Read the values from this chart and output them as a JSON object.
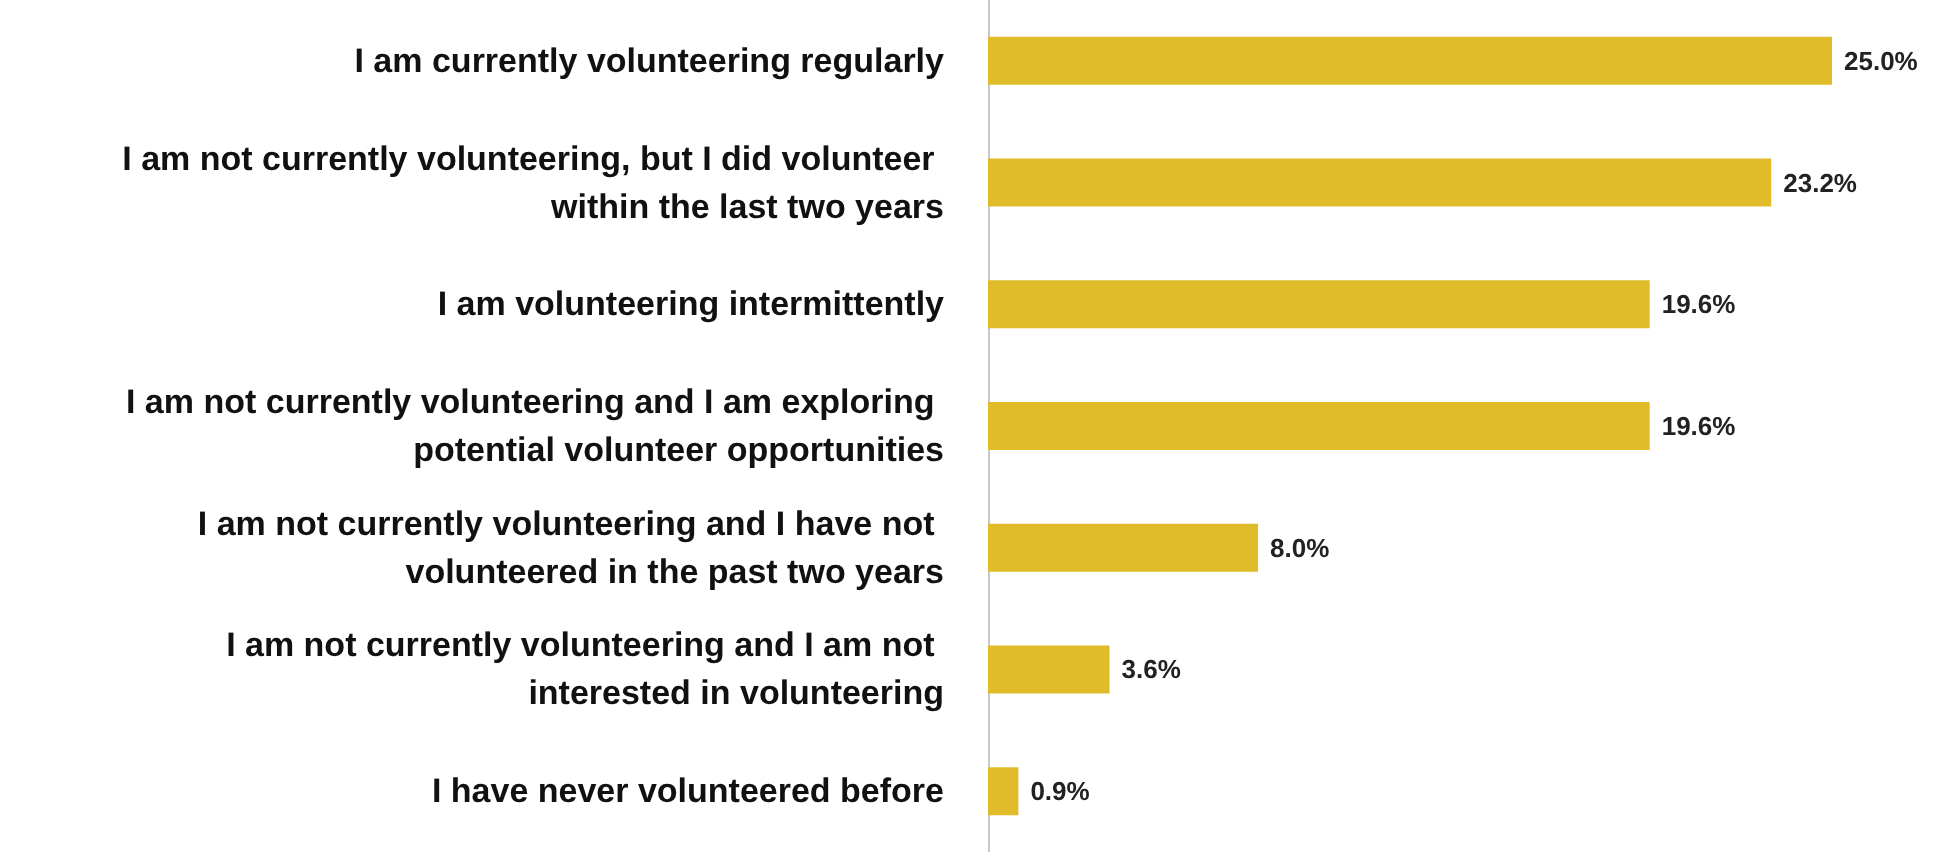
{
  "chart_data": {
    "type": "bar",
    "orientation": "horizontal",
    "categories": [
      "I am currently volunteering regularly",
      "I am not currently volunteering, but I did volunteer within the last two years",
      "I am volunteering intermittently",
      "I am not currently volunteering and I am exploring potential volunteer opportunities",
      "I am not currently volunteering and I have not volunteered in the past two years",
      "I am not currently volunteering and I am not interested in volunteering",
      "I have never volunteered before"
    ],
    "values": [
      25.0,
      23.2,
      19.6,
      19.6,
      8.0,
      3.6,
      0.9
    ],
    "value_labels": [
      "25.0%",
      "23.2%",
      "19.6%",
      "19.6%",
      "8.0%",
      "3.6%",
      "0.9%"
    ],
    "color": "#e0bc2b",
    "grid": false
  }
}
